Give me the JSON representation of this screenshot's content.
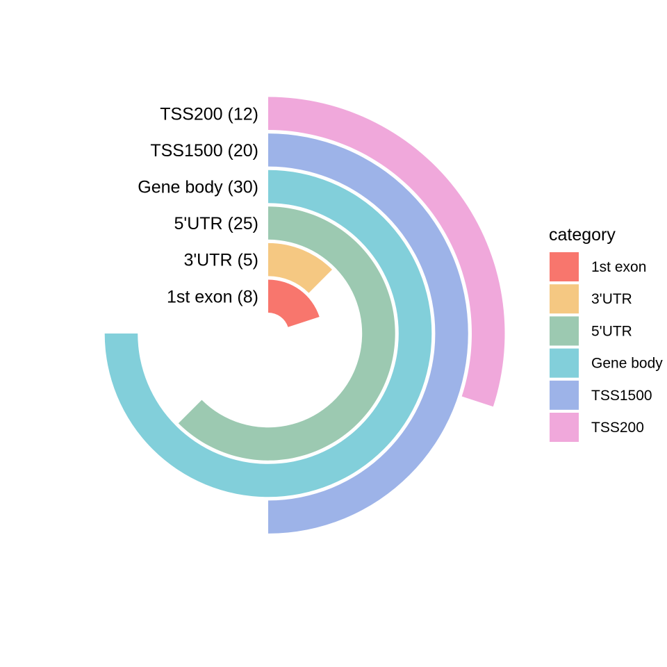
{
  "chart_data": {
    "type": "radial-bar",
    "title": "",
    "xlabel": "",
    "ylabel": "",
    "max_value": 40,
    "categories": [
      "1st exon",
      "3'UTR",
      "5'UTR",
      "Gene body",
      "TSS1500",
      "TSS200"
    ],
    "values": [
      8,
      5,
      25,
      30,
      20,
      12
    ],
    "labels": [
      "1st exon (8)",
      "3'UTR (5)",
      "5'UTR (25)",
      "Gene body (30)",
      "TSS1500 (20)",
      "TSS200 (12)"
    ],
    "colors": [
      "#F8766D",
      "#F5C882",
      "#9CC9B1",
      "#82CFDA",
      "#9DB3E8",
      "#F0A8DB"
    ],
    "legend": {
      "title": "category",
      "position": "right",
      "items": [
        "1st exon",
        "3'UTR",
        "5'UTR",
        "Gene body",
        "TSS1500",
        "TSS200"
      ]
    },
    "grid": false
  }
}
